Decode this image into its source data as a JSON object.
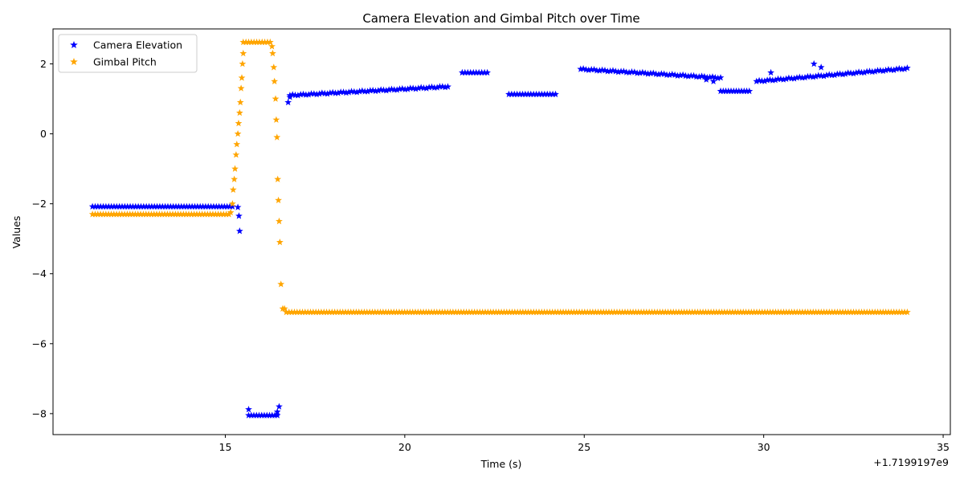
{
  "chart_data": {
    "type": "scatter",
    "title": "Camera Elevation and Gimbal Pitch over Time",
    "xlabel": "Time (s)",
    "ylabel": "Values",
    "x_offset_label": "+1.7199197e9",
    "xlim": [
      10.2,
      35.2
    ],
    "ylim": [
      -8.6,
      3.0
    ],
    "xticks": [
      15,
      20,
      25,
      30,
      35
    ],
    "yticks": [
      2,
      0,
      -2,
      -4,
      -6,
      -8
    ],
    "tick_labels_x": [
      "15",
      "20",
      "25",
      "30",
      "35"
    ],
    "tick_labels_y": [
      "2",
      "0",
      "−2",
      "−4",
      "−6",
      "−8"
    ],
    "grid": false,
    "legend_position": "top-left",
    "marker": "star",
    "series": [
      {
        "name": "Camera Elevation",
        "color": "#0000ff",
        "segments": [
          {
            "x0": 11.3,
            "x1": 15.2,
            "y": -2.08
          },
          {
            "x0": 15.65,
            "x1": 16.45,
            "y": -8.05
          },
          {
            "x0": 16.8,
            "x1": 21.2,
            "y0": 1.1,
            "y1": 1.35
          },
          {
            "x0": 21.6,
            "x1": 22.3,
            "y": 1.75
          },
          {
            "x0": 22.9,
            "x1": 24.2,
            "y": 1.13
          },
          {
            "x0": 24.9,
            "x1": 28.8,
            "y0": 1.85,
            "y1": 1.6
          },
          {
            "x0": 28.8,
            "x1": 29.6,
            "y": 1.22
          },
          {
            "x0": 29.8,
            "x1": 34.0,
            "y0": 1.5,
            "y1": 1.87
          }
        ],
        "points": [
          {
            "x": 15.35,
            "y": -2.1
          },
          {
            "x": 15.38,
            "y": -2.35
          },
          {
            "x": 15.4,
            "y": -2.78
          },
          {
            "x": 15.65,
            "y": -7.88
          },
          {
            "x": 16.5,
            "y": -7.8
          },
          {
            "x": 16.45,
            "y": -7.95
          },
          {
            "x": 16.75,
            "y": 0.9
          },
          {
            "x": 16.8,
            "y": 1.05
          },
          {
            "x": 28.4,
            "y": 1.55
          },
          {
            "x": 28.6,
            "y": 1.5
          },
          {
            "x": 30.2,
            "y": 1.75
          },
          {
            "x": 31.4,
            "y": 2.0
          },
          {
            "x": 31.6,
            "y": 1.9
          }
        ]
      },
      {
        "name": "Gimbal Pitch",
        "color": "#ffa500",
        "segments": [
          {
            "x0": 11.3,
            "x1": 15.1,
            "y": -2.3
          },
          {
            "x0": 15.5,
            "x1": 16.25,
            "y": 2.62
          },
          {
            "x0": 16.7,
            "x1": 34.0,
            "y": -5.1
          }
        ],
        "points": [
          {
            "x": 15.15,
            "y": -2.25
          },
          {
            "x": 15.2,
            "y": -2.0
          },
          {
            "x": 15.22,
            "y": -1.6
          },
          {
            "x": 15.25,
            "y": -1.3
          },
          {
            "x": 15.27,
            "y": -1.0
          },
          {
            "x": 15.3,
            "y": -0.6
          },
          {
            "x": 15.32,
            "y": -0.3
          },
          {
            "x": 15.35,
            "y": 0.0
          },
          {
            "x": 15.37,
            "y": 0.3
          },
          {
            "x": 15.4,
            "y": 0.6
          },
          {
            "x": 15.42,
            "y": 0.9
          },
          {
            "x": 15.44,
            "y": 1.3
          },
          {
            "x": 15.46,
            "y": 1.6
          },
          {
            "x": 15.48,
            "y": 2.0
          },
          {
            "x": 15.5,
            "y": 2.3
          },
          {
            "x": 16.3,
            "y": 2.5
          },
          {
            "x": 16.32,
            "y": 2.3
          },
          {
            "x": 16.35,
            "y": 1.9
          },
          {
            "x": 16.37,
            "y": 1.5
          },
          {
            "x": 16.4,
            "y": 1.0
          },
          {
            "x": 16.42,
            "y": 0.4
          },
          {
            "x": 16.44,
            "y": -0.1
          },
          {
            "x": 16.46,
            "y": -1.3
          },
          {
            "x": 16.48,
            "y": -1.9
          },
          {
            "x": 16.5,
            "y": -2.5
          },
          {
            "x": 16.52,
            "y": -3.1
          },
          {
            "x": 16.55,
            "y": -4.3
          },
          {
            "x": 16.6,
            "y": -5.0
          },
          {
            "x": 16.65,
            "y": -5.0
          }
        ]
      }
    ]
  }
}
